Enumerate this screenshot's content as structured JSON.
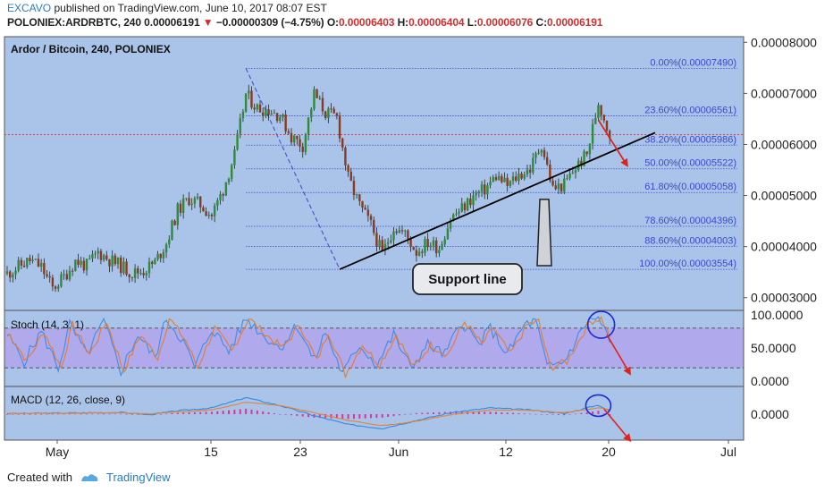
{
  "header": {
    "author": "EXCAVO",
    "published_text": "published on TradingView.com, June 10, 2017 08:07 EST",
    "symbol": "POLONIEX:ARDRBTC, 240",
    "last": "0.00006191",
    "change_arrow": "▼",
    "change": "−0.00000309 (−4.75%)",
    "ohlc": [
      {
        "label": "O:",
        "value": "0.00006403"
      },
      {
        "label": "H:",
        "value": "0.00006404"
      },
      {
        "label": "L:",
        "value": "0.00006076"
      },
      {
        "label": "C:",
        "value": "0.00006191"
      }
    ]
  },
  "footer": {
    "created_with": "Created with",
    "brand": "TradingView"
  },
  "colors": {
    "price_bg": "#aac3e8",
    "stoch_bg": "#aac3e8",
    "stoch_band": "#b0a9ec",
    "up": "#2e8b3a",
    "down": "#8b3a1e",
    "fib": "#3b48d8",
    "arrow": "#e0221c",
    "stoch_k": "#3d8ee8",
    "stoch_d": "#ea7b2b",
    "macd": "#2a8fe6",
    "signal": "#e8822b",
    "hist": "#e0339a"
  },
  "chart_data": [
    {
      "type": "candlestick",
      "title": "Ardor / Bitcoin, 240, POLONIEX",
      "x_ticks": [
        "May",
        "15",
        "23",
        "Jun",
        "12",
        "20",
        "Jul"
      ],
      "y_ticks": [
        "0.00008000",
        "0.00007000",
        "0.00006000",
        "0.00005000",
        "0.00004000",
        "0.00003000"
      ],
      "ylim": [
        2.75e-05,
        8.11e-05
      ],
      "current_price": 6.191e-05,
      "path": [
        [
          0,
          3.47e-05
        ],
        [
          4,
          3.61e-05
        ],
        [
          8,
          3.73e-05
        ],
        [
          12,
          3.6e-05
        ],
        [
          16,
          3.18e-05
        ],
        [
          20,
          3.41e-05
        ],
        [
          24,
          3.72e-05
        ],
        [
          28,
          3.62e-05
        ],
        [
          32,
          3.89e-05
        ],
        [
          36,
          3.74e-05
        ],
        [
          40,
          3.62e-05
        ],
        [
          44,
          3.48e-05
        ],
        [
          48,
          3.53e-05
        ],
        [
          52,
          3.69e-05
        ],
        [
          56,
          4.07e-05
        ],
        [
          60,
          4.71e-05
        ],
        [
          64,
          4.94e-05
        ],
        [
          68,
          4.82e-05
        ],
        [
          72,
          4.61e-05
        ],
        [
          76,
          5.12e-05
        ],
        [
          80,
          5.79e-05
        ],
        [
          84,
          6.98e-05
        ],
        [
          88,
          6.71e-05
        ],
        [
          92,
          6.68e-05
        ],
        [
          96,
          6.57e-05
        ],
        [
          100,
          6.15e-05
        ],
        [
          104,
          5.98e-05
        ],
        [
          108,
          6.99e-05
        ],
        [
          112,
          6.62e-05
        ],
        [
          116,
          6.53e-05
        ],
        [
          120,
          5.34e-05
        ],
        [
          124,
          4.8e-05
        ],
        [
          128,
          4.42e-05
        ],
        [
          132,
          3.85e-05
        ],
        [
          136,
          4.39e-05
        ],
        [
          140,
          4.24e-05
        ],
        [
          144,
          3.9e-05
        ],
        [
          148,
          4.08e-05
        ],
        [
          152,
          3.98e-05
        ],
        [
          156,
          4.55e-05
        ],
        [
          160,
          4.74e-05
        ],
        [
          164,
          4.98e-05
        ],
        [
          168,
          5.12e-05
        ],
        [
          172,
          5.38e-05
        ],
        [
          176,
          5.19e-05
        ],
        [
          180,
          5.4e-05
        ],
        [
          184,
          5.52e-05
        ],
        [
          188,
          6.01e-05
        ],
        [
          192,
          5.13e-05
        ],
        [
          196,
          5.21e-05
        ],
        [
          200,
          5.55e-05
        ],
        [
          204,
          5.8e-05
        ],
        [
          208,
          6.83e-05
        ],
        [
          210,
          6.52e-05
        ],
        [
          212,
          6.19e-05
        ]
      ],
      "fib_levels": [
        {
          "label": "0.00%(0.00007490)",
          "value": 7.49e-05
        },
        {
          "label": "23.60%(0.00006561)",
          "value": 6.561e-05
        },
        {
          "label": "38.20%(0.00005986)",
          "value": 5.986e-05
        },
        {
          "label": "50.00%(0.00005522)",
          "value": 5.522e-05
        },
        {
          "label": "61.80%(0.00005058)",
          "value": 5.058e-05
        },
        {
          "label": "78.60%(0.00004396)",
          "value": 4.396e-05
        },
        {
          "label": "88.60%(0.00004003)",
          "value": 4.003e-05
        },
        {
          "label": "100.00%(0.00003554)",
          "value": 3.554e-05
        }
      ],
      "fib_swing": {
        "high_x": 84,
        "high": 7.49e-05,
        "low_x": 117,
        "low": 3.554e-05
      },
      "support_line": {
        "x1": 117,
        "y1": 3.554e-05,
        "x2": 228,
        "y2": 6.23e-05
      },
      "forecast_arrow": {
        "x1": 208,
        "y1": 6.48e-05,
        "x2": 218,
        "y2": 5.6e-05
      },
      "annotation": {
        "text": "Support line",
        "tip_x": 189,
        "tip_y": 5.03e-05
      }
    },
    {
      "type": "line",
      "title": "Stoch (14, 3, 1)",
      "y_ticks": [
        "100.0000",
        "50.0000",
        "0.0000"
      ],
      "ylim": [
        0,
        100
      ],
      "band": [
        20,
        80
      ],
      "k_path": [
        [
          0,
          70
        ],
        [
          6,
          30
        ],
        [
          12,
          75
        ],
        [
          18,
          20
        ],
        [
          22,
          85
        ],
        [
          28,
          40
        ],
        [
          34,
          90
        ],
        [
          40,
          15
        ],
        [
          46,
          70
        ],
        [
          52,
          35
        ],
        [
          56,
          95
        ],
        [
          62,
          60
        ],
        [
          66,
          20
        ],
        [
          72,
          80
        ],
        [
          78,
          45
        ],
        [
          84,
          95
        ],
        [
          90,
          70
        ],
        [
          96,
          50
        ],
        [
          102,
          85
        ],
        [
          108,
          30
        ],
        [
          112,
          75
        ],
        [
          118,
          10
        ],
        [
          124,
          55
        ],
        [
          130,
          25
        ],
        [
          136,
          70
        ],
        [
          142,
          20
        ],
        [
          148,
          55
        ],
        [
          154,
          40
        ],
        [
          160,
          90
        ],
        [
          166,
          55
        ],
        [
          170,
          80
        ],
        [
          176,
          40
        ],
        [
          182,
          85
        ],
        [
          186,
          90
        ],
        [
          190,
          20
        ],
        [
          196,
          30
        ],
        [
          200,
          60
        ],
        [
          204,
          90
        ],
        [
          208,
          95
        ],
        [
          212,
          60
        ]
      ],
      "circle": {
        "x": 209,
        "y": 85
      },
      "arrow": {
        "x1": 211,
        "y1": 70,
        "x2": 219,
        "y2": 12
      }
    },
    {
      "type": "line",
      "title": "MACD (12, 26, close, 9)",
      "y_ticks": [
        "0.0000"
      ],
      "ylim": [
        -1,
        1
      ],
      "macd_path": [
        [
          0,
          0.02
        ],
        [
          20,
          0.04
        ],
        [
          40,
          0.06
        ],
        [
          50,
          -0.02
        ],
        [
          60,
          0.12
        ],
        [
          72,
          0.22
        ],
        [
          84,
          0.58
        ],
        [
          96,
          0.3
        ],
        [
          108,
          -0.05
        ],
        [
          120,
          -0.36
        ],
        [
          132,
          -0.5
        ],
        [
          144,
          -0.22
        ],
        [
          156,
          0.05
        ],
        [
          170,
          0.22
        ],
        [
          184,
          0.15
        ],
        [
          196,
          0.02
        ],
        [
          208,
          0.32
        ],
        [
          212,
          0.1
        ]
      ],
      "signal_path": [
        [
          0,
          0.03
        ],
        [
          20,
          0.03
        ],
        [
          40,
          0.05
        ],
        [
          50,
          0.01
        ],
        [
          60,
          0.08
        ],
        [
          72,
          0.15
        ],
        [
          84,
          0.42
        ],
        [
          96,
          0.3
        ],
        [
          108,
          0.05
        ],
        [
          120,
          -0.22
        ],
        [
          132,
          -0.4
        ],
        [
          144,
          -0.25
        ],
        [
          156,
          -0.02
        ],
        [
          170,
          0.15
        ],
        [
          184,
          0.14
        ],
        [
          196,
          0.05
        ],
        [
          208,
          0.22
        ],
        [
          212,
          0.16
        ]
      ],
      "circle": {
        "x": 208,
        "y": 0.3
      },
      "arrow": {
        "x1": 210,
        "y1": 0.18,
        "x2": 219,
        "y2": -0.9
      }
    }
  ]
}
